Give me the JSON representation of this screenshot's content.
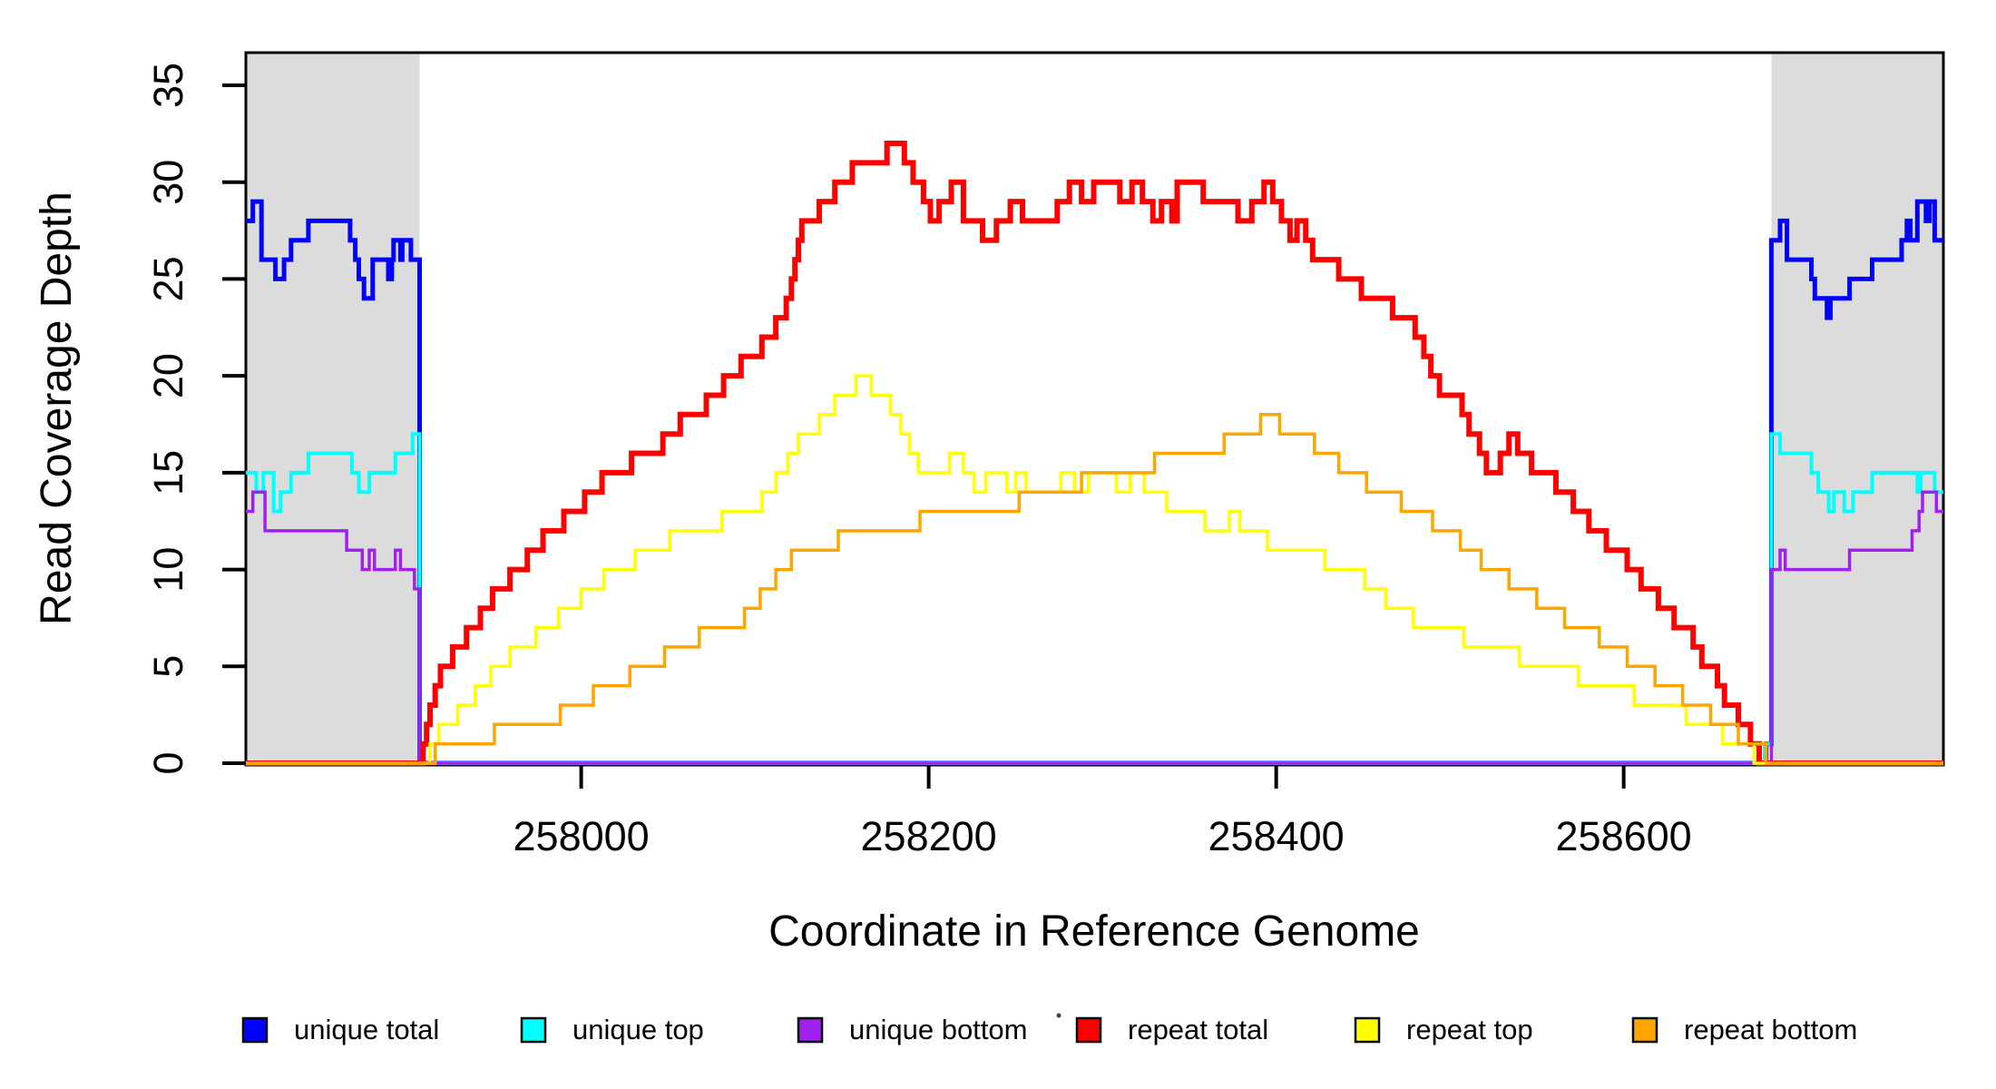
{
  "chart_data": {
    "type": "line",
    "subtype": "step-after",
    "title": "",
    "xlabel": "Coordinate in Reference Genome",
    "ylabel": "Read Coverage Depth",
    "xlim": [
      257807,
      258784
    ],
    "ylim": [
      0,
      35
    ],
    "x_ticks": [
      258000,
      258200,
      258400,
      258600
    ],
    "y_ticks": [
      0,
      5,
      10,
      15,
      20,
      25,
      30,
      35
    ],
    "grid": false,
    "legend_position": "bottom",
    "masked_region_color": "#DCDCDC",
    "masked_regions": [
      {
        "x0": 257807,
        "x1": 257907
      },
      {
        "x0": 258685,
        "x1": 258784
      }
    ],
    "series": [
      {
        "name": "unique total",
        "color": "#0000FF",
        "width": 5,
        "points": [
          [
            257807,
            28
          ],
          [
            257811,
            29
          ],
          [
            257816,
            26
          ],
          [
            257824,
            25
          ],
          [
            257829,
            26
          ],
          [
            257833,
            27
          ],
          [
            257843,
            28
          ],
          [
            257867,
            27
          ],
          [
            257870,
            26
          ],
          [
            257872,
            25
          ],
          [
            257875,
            24
          ],
          [
            257880,
            26
          ],
          [
            257889,
            25
          ],
          [
            257891,
            26
          ],
          [
            257892,
            27
          ],
          [
            257896,
            26
          ],
          [
            257897,
            27
          ],
          [
            257902,
            26
          ],
          [
            257907,
            0
          ],
          [
            258682,
            1
          ],
          [
            258685,
            27
          ],
          [
            258690,
            28
          ],
          [
            258694,
            26
          ],
          [
            258708,
            25
          ],
          [
            258710,
            24
          ],
          [
            258717,
            23
          ],
          [
            258719,
            24
          ],
          [
            258730,
            25
          ],
          [
            258743,
            26
          ],
          [
            258760,
            27
          ],
          [
            258763,
            28
          ],
          [
            258765,
            27
          ],
          [
            258769,
            29
          ],
          [
            258774,
            28
          ],
          [
            258776,
            29
          ],
          [
            258779,
            27
          ]
        ]
      },
      {
        "name": "unique top",
        "color": "#00FFFF",
        "width": 4,
        "points": [
          [
            257807,
            15
          ],
          [
            257813,
            14
          ],
          [
            257817,
            15
          ],
          [
            257823,
            13
          ],
          [
            257827,
            14
          ],
          [
            257833,
            15
          ],
          [
            257843,
            16
          ],
          [
            257868,
            15
          ],
          [
            257872,
            14
          ],
          [
            257878,
            15
          ],
          [
            257893,
            16
          ],
          [
            257903,
            17
          ],
          [
            257907,
            0
          ],
          [
            258681,
            1
          ],
          [
            258685,
            17
          ],
          [
            258690,
            16
          ],
          [
            258708,
            15
          ],
          [
            258712,
            14
          ],
          [
            258718,
            13
          ],
          [
            258721,
            14
          ],
          [
            258727,
            13
          ],
          [
            258732,
            14
          ],
          [
            258743,
            15
          ],
          [
            258769,
            14
          ],
          [
            258771,
            15
          ],
          [
            258779,
            14
          ]
        ]
      },
      {
        "name": "unique bottom",
        "color": "#A020F0",
        "width": 3.5,
        "points": [
          [
            257807,
            13
          ],
          [
            257811,
            14
          ],
          [
            257818,
            12
          ],
          [
            257865,
            11
          ],
          [
            257874,
            10
          ],
          [
            257878,
            11
          ],
          [
            257881,
            10
          ],
          [
            257893,
            11
          ],
          [
            257896,
            10
          ],
          [
            257904,
            9
          ],
          [
            257907,
            0
          ],
          [
            258685,
            10
          ],
          [
            258690,
            11
          ],
          [
            258693,
            10
          ],
          [
            258730,
            11
          ],
          [
            258766,
            12
          ],
          [
            258770,
            13
          ],
          [
            258772,
            14
          ],
          [
            258780,
            13
          ]
        ]
      },
      {
        "name": "repeat total",
        "color": "#FF0000",
        "width": 6,
        "points": [
          [
            257807,
            0
          ],
          [
            257909,
            1
          ],
          [
            257911,
            2
          ],
          [
            257913,
            3
          ],
          [
            257916,
            4
          ],
          [
            257919,
            5
          ],
          [
            257926,
            6
          ],
          [
            257934,
            7
          ],
          [
            257942,
            8
          ],
          [
            257949,
            9
          ],
          [
            257959,
            10
          ],
          [
            257969,
            11
          ],
          [
            257978,
            12
          ],
          [
            257990,
            13
          ],
          [
            258002,
            14
          ],
          [
            258012,
            15
          ],
          [
            258029,
            16
          ],
          [
            258047,
            17
          ],
          [
            258057,
            18
          ],
          [
            258072,
            19
          ],
          [
            258082,
            20
          ],
          [
            258092,
            21
          ],
          [
            258104,
            22
          ],
          [
            258112,
            23
          ],
          [
            258118,
            24
          ],
          [
            258121,
            25
          ],
          [
            258123,
            26
          ],
          [
            258125,
            27
          ],
          [
            258127,
            28
          ],
          [
            258137,
            29
          ],
          [
            258146,
            30
          ],
          [
            258156,
            31
          ],
          [
            258176,
            32
          ],
          [
            258186,
            31
          ],
          [
            258191,
            30
          ],
          [
            258197,
            29
          ],
          [
            258201,
            28
          ],
          [
            258206,
            29
          ],
          [
            258213,
            30
          ],
          [
            258220,
            28
          ],
          [
            258231,
            27
          ],
          [
            258239,
            28
          ],
          [
            258247,
            29
          ],
          [
            258254,
            28
          ],
          [
            258268,
            28
          ],
          [
            258274,
            29
          ],
          [
            258281,
            30
          ],
          [
            258288,
            29
          ],
          [
            258295,
            30
          ],
          [
            258310,
            29
          ],
          [
            258317,
            30
          ],
          [
            258323,
            29
          ],
          [
            258329,
            28
          ],
          [
            258334,
            29
          ],
          [
            258340,
            28
          ],
          [
            258343,
            30
          ],
          [
            258358,
            29
          ],
          [
            258371,
            29
          ],
          [
            258378,
            28
          ],
          [
            258386,
            29
          ],
          [
            258393,
            30
          ],
          [
            258398,
            29
          ],
          [
            258403,
            28
          ],
          [
            258408,
            27
          ],
          [
            258412,
            28
          ],
          [
            258417,
            27
          ],
          [
            258421,
            26
          ],
          [
            258432,
            26
          ],
          [
            258436,
            25
          ],
          [
            258445,
            25
          ],
          [
            258449,
            24
          ],
          [
            258462,
            24
          ],
          [
            258467,
            23
          ],
          [
            258475,
            23
          ],
          [
            258480,
            22
          ],
          [
            258485,
            21
          ],
          [
            258489,
            20
          ],
          [
            258494,
            19
          ],
          [
            258503,
            19
          ],
          [
            258507,
            18
          ],
          [
            258511,
            17
          ],
          [
            258517,
            16
          ],
          [
            258521,
            15
          ],
          [
            258529,
            16
          ],
          [
            258534,
            17
          ],
          [
            258539,
            16
          ],
          [
            258547,
            15
          ],
          [
            258556,
            15
          ],
          [
            258561,
            14
          ],
          [
            258571,
            13
          ],
          [
            258576,
            13
          ],
          [
            258580,
            12
          ],
          [
            258585,
            12
          ],
          [
            258590,
            11
          ],
          [
            258598,
            11
          ],
          [
            258602,
            10
          ],
          [
            258606,
            10
          ],
          [
            258610,
            9
          ],
          [
            258616,
            9
          ],
          [
            258620,
            8
          ],
          [
            258625,
            8
          ],
          [
            258629,
            7
          ],
          [
            258635,
            7
          ],
          [
            258640,
            6
          ],
          [
            258645,
            5
          ],
          [
            258650,
            5
          ],
          [
            258654,
            4
          ],
          [
            258658,
            3
          ],
          [
            258663,
            3
          ],
          [
            258666,
            2
          ],
          [
            258670,
            2
          ],
          [
            258673,
            1
          ],
          [
            258678,
            0
          ]
        ]
      },
      {
        "name": "repeat top",
        "color": "#FFFF00",
        "width": 3.5,
        "points": [
          [
            257807,
            0
          ],
          [
            257913,
            1
          ],
          [
            257918,
            2
          ],
          [
            257929,
            3
          ],
          [
            257939,
            4
          ],
          [
            257948,
            5
          ],
          [
            257959,
            6
          ],
          [
            257974,
            7
          ],
          [
            257987,
            8
          ],
          [
            258000,
            9
          ],
          [
            258013,
            10
          ],
          [
            258031,
            11
          ],
          [
            258051,
            12
          ],
          [
            258081,
            13
          ],
          [
            258104,
            14
          ],
          [
            258112,
            15
          ],
          [
            258119,
            16
          ],
          [
            258125,
            17
          ],
          [
            258137,
            18
          ],
          [
            258146,
            19
          ],
          [
            258158,
            20
          ],
          [
            258167,
            19
          ],
          [
            258178,
            18
          ],
          [
            258184,
            17
          ],
          [
            258189,
            16
          ],
          [
            258194,
            15
          ],
          [
            258208,
            15
          ],
          [
            258212,
            16
          ],
          [
            258220,
            15
          ],
          [
            258226,
            14
          ],
          [
            258233,
            15
          ],
          [
            258245,
            14
          ],
          [
            258250,
            15
          ],
          [
            258256,
            14
          ],
          [
            258276,
            15
          ],
          [
            258284,
            14
          ],
          [
            258292,
            15
          ],
          [
            258308,
            14
          ],
          [
            258316,
            15
          ],
          [
            258324,
            14
          ],
          [
            258337,
            13
          ],
          [
            258353,
            13
          ],
          [
            258359,
            12
          ],
          [
            258373,
            13
          ],
          [
            258379,
            12
          ],
          [
            258395,
            11
          ],
          [
            258420,
            11
          ],
          [
            258428,
            10
          ],
          [
            258446,
            10
          ],
          [
            258451,
            9
          ],
          [
            258459,
            9
          ],
          [
            258463,
            8
          ],
          [
            258474,
            8
          ],
          [
            258479,
            7
          ],
          [
            258500,
            7
          ],
          [
            258508,
            6
          ],
          [
            258528,
            6
          ],
          [
            258532,
            6
          ],
          [
            258540,
            5
          ],
          [
            258568,
            5
          ],
          [
            258574,
            4
          ],
          [
            258596,
            4
          ],
          [
            258606,
            3
          ],
          [
            258630,
            3
          ],
          [
            258636,
            2
          ],
          [
            258652,
            2
          ],
          [
            258657,
            1
          ],
          [
            258670,
            1
          ],
          [
            258675,
            0
          ]
        ]
      },
      {
        "name": "repeat bottom",
        "color": "#FFA500",
        "width": 3.5,
        "points": [
          [
            257807,
            0
          ],
          [
            257916,
            1
          ],
          [
            257950,
            2
          ],
          [
            257988,
            3
          ],
          [
            258007,
            4
          ],
          [
            258028,
            5
          ],
          [
            258048,
            6
          ],
          [
            258068,
            7
          ],
          [
            258094,
            8
          ],
          [
            258103,
            9
          ],
          [
            258112,
            10
          ],
          [
            258121,
            11
          ],
          [
            258148,
            12
          ],
          [
            258195,
            13
          ],
          [
            258252,
            14
          ],
          [
            258288,
            15
          ],
          [
            258330,
            16
          ],
          [
            258370,
            17
          ],
          [
            258391,
            18
          ],
          [
            258402,
            17
          ],
          [
            258422,
            16
          ],
          [
            258436,
            15
          ],
          [
            258452,
            14
          ],
          [
            258472,
            13
          ],
          [
            258490,
            12
          ],
          [
            258506,
            11
          ],
          [
            258518,
            10
          ],
          [
            258534,
            9
          ],
          [
            258550,
            8
          ],
          [
            258566,
            7
          ],
          [
            258586,
            6
          ],
          [
            258602,
            5
          ],
          [
            258618,
            4
          ],
          [
            258634,
            3
          ],
          [
            258650,
            2
          ],
          [
            258666,
            1
          ],
          [
            258682,
            0
          ]
        ]
      }
    ]
  },
  "legend": {
    "items": [
      {
        "label": "unique total",
        "color": "#0000FF"
      },
      {
        "label": "unique top",
        "color": "#00FFFF"
      },
      {
        "label": "unique bottom",
        "color": "#A020F0"
      },
      {
        "label": "repeat total",
        "color": "#FF0000"
      },
      {
        "label": "repeat top",
        "color": "#FFFF00"
      },
      {
        "label": "repeat bottom",
        "color": "#FFA500"
      }
    ]
  }
}
